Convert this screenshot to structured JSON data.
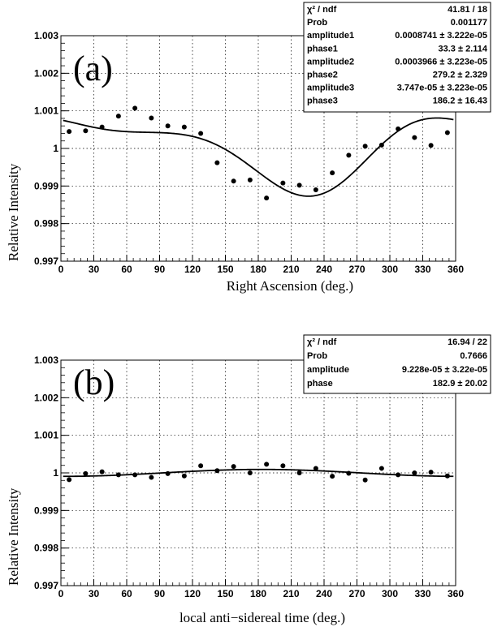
{
  "chart_data": [
    {
      "type": "scatter",
      "panel_label": "(a)",
      "xlabel": "Right Ascension (deg.)",
      "ylabel": "Relative Intensity",
      "xlim": [
        0,
        360
      ],
      "ylim": [
        0.997,
        1.003
      ],
      "x_ticks": [
        "0",
        "30",
        "60",
        "90",
        "120",
        "150",
        "180",
        "210",
        "240",
        "270",
        "300",
        "330",
        "360"
      ],
      "y_ticks": [
        "0.997",
        "0.998",
        "0.999",
        "1",
        "1.001",
        "1.002",
        "1.003"
      ],
      "grid": true,
      "series": [
        {
          "x": [
            7.5,
            22.5,
            37.5,
            52.5,
            67.5,
            82.5,
            97.5,
            112.5,
            127.5,
            142.5,
            157.5,
            172.5,
            187.5,
            202.5,
            217.5,
            232.5,
            247.5,
            262.5,
            277.5,
            292.5,
            307.5,
            322.5,
            337.5,
            352.5
          ],
          "y": [
            1.00045,
            1.00047,
            1.00057,
            1.00086,
            1.00107,
            1.00081,
            1.0006,
            1.00057,
            1.0004,
            0.99962,
            0.99913,
            0.99916,
            0.99868,
            0.99908,
            0.99902,
            0.9989,
            0.99935,
            0.99982,
            1.00006,
            1.00009,
            1.00052,
            1.00029,
            1.00008,
            1.00042
          ],
          "yerr": 3.2e-05
        }
      ],
      "fit_params": {
        "offset": 1.0,
        "amp1": 0.0008741,
        "phase1": 33.3,
        "amp2": 0.0003966,
        "phase2": 279.2,
        "amp3": 3.747e-05,
        "phase3": 186.2
      },
      "stats": [
        [
          "χ² / ndf",
          "41.81 / 18"
        ],
        [
          "Prob",
          "0.001177"
        ],
        [
          "amplitude1",
          "0.0008741 ± 3.222e-05"
        ],
        [
          "phase1",
          "33.3 ± 2.114"
        ],
        [
          "amplitude2",
          "0.0003966 ± 3.223e-05"
        ],
        [
          "phase2",
          "279.2 ± 2.329"
        ],
        [
          "amplitude3",
          "3.747e-05 ± 3.223e-05"
        ],
        [
          "phase3",
          "186.2 ± 16.43"
        ]
      ]
    },
    {
      "type": "scatter",
      "panel_label": "(b)",
      "xlabel": "local anti−sidereal time (deg.)",
      "ylabel": "Relative Intensity",
      "xlim": [
        0,
        360
      ],
      "ylim": [
        0.997,
        1.003
      ],
      "x_ticks": [
        "0",
        "30",
        "60",
        "90",
        "120",
        "150",
        "180",
        "210",
        "240",
        "270",
        "300",
        "330",
        "360"
      ],
      "y_ticks": [
        "0.997",
        "0.998",
        "0.999",
        "1",
        "1.001",
        "1.002",
        "1.003"
      ],
      "grid": true,
      "series": [
        {
          "x": [
            7.5,
            22.5,
            37.5,
            52.5,
            67.5,
            82.5,
            97.5,
            112.5,
            127.5,
            142.5,
            157.5,
            172.5,
            187.5,
            202.5,
            217.5,
            232.5,
            247.5,
            262.5,
            277.5,
            292.5,
            307.5,
            322.5,
            337.5,
            352.5
          ],
          "y": [
            0.99982,
            0.99998,
            1.00003,
            0.99995,
            0.99995,
            0.99988,
            0.99998,
            0.99992,
            1.00019,
            1.00006,
            1.00017,
            1.0,
            1.00023,
            1.00019,
            1.0,
            1.00012,
            0.99991,
            0.99999,
            0.99981,
            1.00012,
            0.99995,
            1.0,
            1.00002,
            0.99992
          ],
          "yerr": 3.2e-05
        }
      ],
      "fit_params": {
        "offset": 1.0,
        "amp1": 9.228e-05,
        "phase1": 182.9
      },
      "stats": [
        [
          "χ² / ndf",
          "16.94 / 22"
        ],
        [
          "Prob",
          "0.7666"
        ],
        [
          "amplitude",
          "9.228e-05 ± 3.22e-05"
        ],
        [
          "phase",
          "182.9 ± 20.02"
        ]
      ]
    }
  ]
}
